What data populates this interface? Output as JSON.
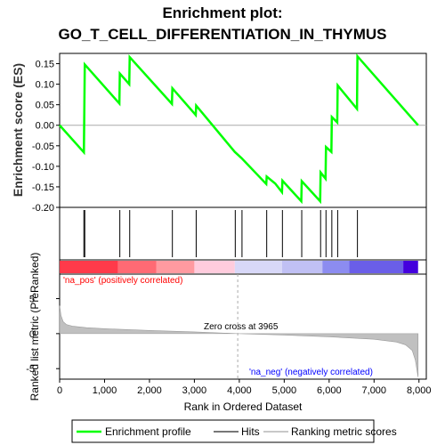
{
  "title_line1": "Enrichment plot:",
  "title_line2": "GO_T_CELL_DIFFERENTIATION_IN_THYMUS",
  "colors": {
    "enrichment": "#00ff00",
    "hits": "#000000",
    "metric_fill": "#c0c0c0",
    "pos_text": "#ff0000",
    "neg_text": "#0000ff",
    "zero_line": "#aaaaaa"
  },
  "chart_data": [
    {
      "type": "line",
      "name": "enrichment-profile",
      "ylabel": "Enrichment score (ES)",
      "xlim": [
        0,
        8000
      ],
      "ylim": [
        -0.2,
        0.175
      ],
      "yticks": [
        0.15,
        0.1,
        0.05,
        0.0,
        -0.05,
        -0.1,
        -0.15,
        -0.2
      ],
      "ytick_labels": [
        "0.15",
        "0.10",
        "0.05",
        "0.00",
        "-0.05",
        "-0.10",
        "-0.15",
        "-0.20"
      ],
      "x": [
        0,
        540,
        550,
        560,
        1330,
        1340,
        1550,
        1560,
        2500,
        2510,
        3030,
        3040,
        3900,
        4050,
        4600,
        4610,
        4800,
        4950,
        4960,
        5380,
        5390,
        5800,
        5810,
        5920,
        5930,
        6050,
        6060,
        6180,
        6190,
        6620,
        6630,
        7980
      ],
      "y": [
        0.0,
        -0.066,
        0.04,
        0.148,
        0.053,
        0.126,
        0.1,
        0.166,
        0.052,
        0.09,
        0.025,
        0.048,
        -0.065,
        -0.08,
        -0.143,
        -0.125,
        -0.142,
        -0.163,
        -0.135,
        -0.185,
        -0.136,
        -0.185,
        -0.115,
        -0.13,
        -0.053,
        -0.065,
        0.02,
        0.007,
        0.097,
        0.04,
        0.168,
        0.0
      ],
      "grid": false,
      "legend": "bottom"
    },
    {
      "type": "hits",
      "name": "hits",
      "positions": [
        540,
        560,
        1340,
        1560,
        2510,
        3040,
        3910,
        4060,
        4610,
        4960,
        5390,
        5810,
        5930,
        6060,
        6190,
        6630
      ]
    },
    {
      "type": "area",
      "name": "ranking-metric",
      "ylabel": "Ranked list metric (PreRanked)",
      "xlabel": "Rank in Ordered Dataset",
      "xlim": [
        0,
        8000
      ],
      "ylim": [
        -6.5,
        8.5
      ],
      "yticks": [
        5,
        0,
        -5
      ],
      "ytick_labels": [
        "5",
        "0",
        "-5"
      ],
      "xticks": [
        0,
        1000,
        2000,
        3000,
        4000,
        5000,
        6000,
        7000,
        8000
      ],
      "xtick_labels": [
        "0",
        "1,000",
        "2,000",
        "3,000",
        "4,000",
        "5,000",
        "6,000",
        "7,000",
        "8,000"
      ],
      "x": [
        0,
        30,
        80,
        150,
        300,
        600,
        1000,
        2000,
        3000,
        3965,
        5000,
        6000,
        7000,
        7500,
        7700,
        7850,
        7920,
        7950,
        7980
      ],
      "y": [
        4.0,
        2.6,
        1.7,
        1.3,
        1.05,
        0.85,
        0.7,
        0.45,
        0.25,
        0.0,
        -0.2,
        -0.45,
        -0.8,
        -1.2,
        -1.6,
        -2.4,
        -3.8,
        -5.0,
        -6.2
      ],
      "zero_cross": 3965,
      "annotations": {
        "zero_cross": "Zero cross at 3965",
        "pos": "'na_pos' (positively correlated)",
        "neg": "'na_neg' (negatively correlated)"
      }
    }
  ],
  "legend": {
    "items": [
      "Enrichment profile",
      "Hits",
      "Ranking metric scores"
    ]
  }
}
